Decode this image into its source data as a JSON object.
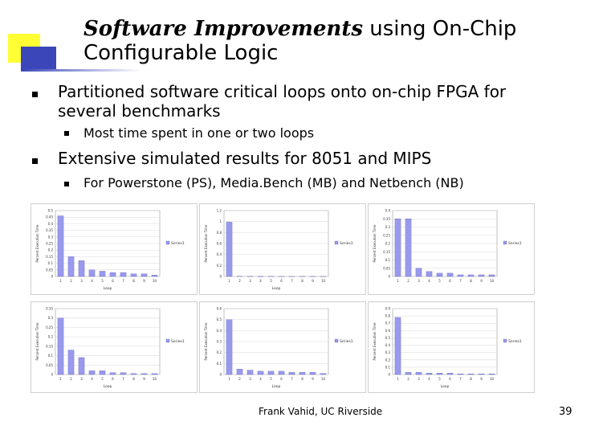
{
  "title": {
    "emphasis": "Software Improvements",
    "rest": " using On-Chip",
    "line2": "Configurable Logic"
  },
  "bullets": [
    {
      "text": "Partitioned software critical loops onto on-chip FPGA for several benchmarks",
      "subs": [
        "Most time spent in one or two loops"
      ]
    },
    {
      "text": "Extensive simulated results for 8051 and MIPS",
      "subs": [
        "For Powerstone (PS), Media.Bench (MB) and Netbench (NB)"
      ]
    }
  ],
  "footer": "Frank Vahid, UC Riverside",
  "page_number": "39",
  "colors": {
    "bar": "#9999ee",
    "deco_yellow": "#ffff33",
    "deco_blue": "#3b47b8"
  },
  "chart_data": [
    {
      "type": "bar",
      "categories": [
        "1",
        "2",
        "3",
        "4",
        "5",
        "6",
        "7",
        "8",
        "9",
        "10"
      ],
      "series": [
        {
          "name": "Series1",
          "values": [
            0.46,
            0.15,
            0.12,
            0.05,
            0.04,
            0.03,
            0.03,
            0.02,
            0.02,
            0.01
          ]
        }
      ],
      "ylim": [
        0,
        0.5
      ],
      "yticks": [
        "0",
        "0.05",
        "0.1",
        "0.15",
        "0.2",
        "0.25",
        "0.3",
        "0.35",
        "0.4",
        "0.45",
        "0.5"
      ],
      "ylabel": "Percent Execution Time",
      "xlabel": "Loop"
    },
    {
      "type": "bar",
      "categories": [
        "1",
        "2",
        "3",
        "4",
        "5",
        "6",
        "7",
        "8",
        "9",
        "10"
      ],
      "series": [
        {
          "name": "Series1",
          "values": [
            0.99,
            0.005,
            0.002,
            0.002,
            0.001,
            0.001,
            0.001,
            0.001,
            0.001,
            0.001
          ]
        }
      ],
      "ylim": [
        0,
        1.2
      ],
      "yticks": [
        "0",
        "0.2",
        "0.4",
        "0.6",
        "0.8",
        "1",
        "1.2"
      ],
      "ylabel": "Percent Execution Time",
      "xlabel": "Loop"
    },
    {
      "type": "bar",
      "categories": [
        "1",
        "2",
        "3",
        "4",
        "5",
        "6",
        "7",
        "8",
        "9",
        "10"
      ],
      "series": [
        {
          "name": "Series1",
          "values": [
            0.35,
            0.35,
            0.05,
            0.03,
            0.02,
            0.02,
            0.01,
            0.01,
            0.01,
            0.01
          ]
        }
      ],
      "ylim": [
        0,
        0.4
      ],
      "yticks": [
        "0",
        "0.05",
        "0.1",
        "0.15",
        "0.2",
        "0.25",
        "0.3",
        "0.35",
        "0.4"
      ],
      "ylabel": "Percent Execution Time",
      "xlabel": ""
    },
    {
      "type": "bar",
      "categories": [
        "1",
        "2",
        "3",
        "4",
        "5",
        "6",
        "7",
        "8",
        "9",
        "10"
      ],
      "series": [
        {
          "name": "Series1",
          "values": [
            0.3,
            0.13,
            0.09,
            0.02,
            0.02,
            0.01,
            0.01,
            0.005,
            0.005,
            0.005
          ]
        }
      ],
      "ylim": [
        0,
        0.35
      ],
      "yticks": [
        "0",
        "0.05",
        "0.1",
        "0.15",
        "0.2",
        "0.25",
        "0.3",
        "0.35"
      ],
      "ylabel": "Percent Execution Time",
      "xlabel": "Loop"
    },
    {
      "type": "bar",
      "categories": [
        "1",
        "2",
        "3",
        "4",
        "5",
        "6",
        "7",
        "8",
        "9",
        "10"
      ],
      "series": [
        {
          "name": "Series1",
          "values": [
            0.5,
            0.05,
            0.04,
            0.03,
            0.03,
            0.03,
            0.02,
            0.02,
            0.02,
            0.01
          ]
        }
      ],
      "ylim": [
        0,
        0.6
      ],
      "yticks": [
        "0",
        "0.1",
        "0.2",
        "0.3",
        "0.4",
        "0.5",
        "0.6"
      ],
      "ylabel": "Percent Execution Time",
      "xlabel": "Loop"
    },
    {
      "type": "bar",
      "categories": [
        "1",
        "2",
        "3",
        "4",
        "5",
        "6",
        "7",
        "8",
        "9",
        "10"
      ],
      "series": [
        {
          "name": "Series1",
          "values": [
            0.78,
            0.03,
            0.03,
            0.02,
            0.02,
            0.02,
            0.01,
            0.01,
            0.01,
            0.01
          ]
        }
      ],
      "ylim": [
        0,
        0.9
      ],
      "yticks": [
        "0",
        "0.1",
        "0.2",
        "0.3",
        "0.4",
        "0.5",
        "0.6",
        "0.7",
        "0.8",
        "0.9"
      ],
      "ylabel": "Percent Execution Time",
      "xlabel": "Loop"
    }
  ]
}
